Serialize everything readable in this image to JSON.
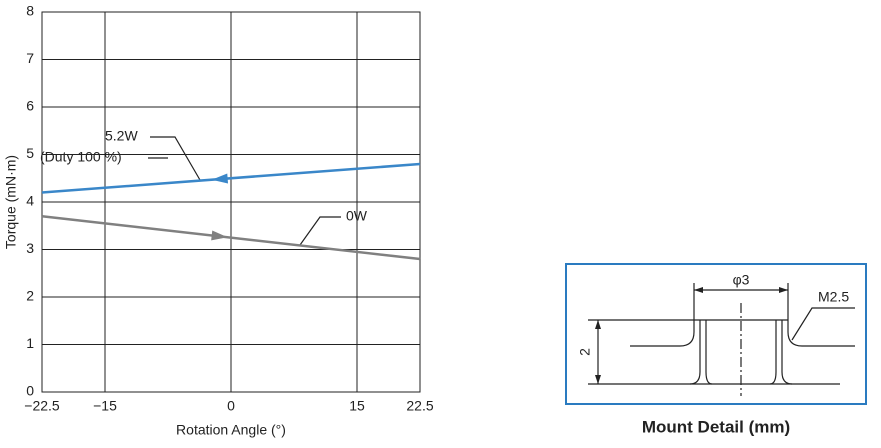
{
  "chart_data": {
    "type": "line",
    "x_label": "Rotation Angle (°)",
    "y_label": "Torque (mN·m)",
    "x": [
      -22.5,
      22.5
    ],
    "series": [
      {
        "name": "5.2W",
        "color": "#3a87c9",
        "values": [
          4.2,
          4.8
        ],
        "direction": "left"
      },
      {
        "name": "0W",
        "color": "#808080",
        "values": [
          3.7,
          2.8
        ],
        "direction": "right"
      }
    ],
    "annotation": "(Duty 100 %)",
    "xlim": [
      -22.5,
      22.5
    ],
    "xticks": [
      {
        "value": -22.5,
        "label": "−22.5"
      },
      {
        "value": -15,
        "label": "−15"
      },
      0,
      15,
      22.5
    ],
    "ylim": [
      0,
      8
    ],
    "yticks": [
      0,
      1,
      2,
      3,
      4,
      5,
      6,
      7,
      8
    ],
    "grid": true
  },
  "mount_detail": {
    "title": "Mount Detail (mm)",
    "diameter_label": "φ3",
    "thread_label": "M2.5",
    "height_label": "2"
  }
}
